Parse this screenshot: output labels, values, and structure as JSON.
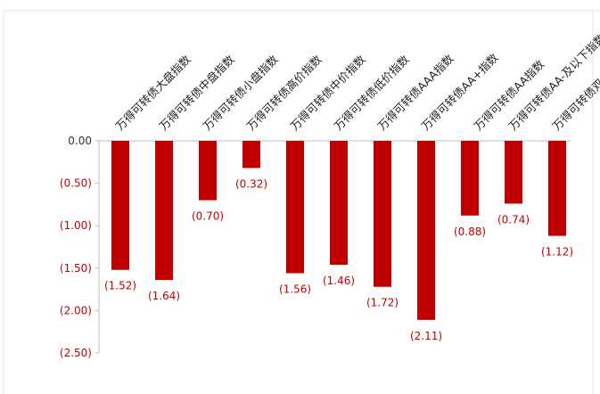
{
  "chart_data": {
    "type": "bar",
    "categories": [
      "万得可转债大盘指数",
      "万得可转债中盘指数",
      "万得可转债小盘指数",
      "万得可转债高价指数",
      "万得可转债中价指数",
      "万得可转债低价指数",
      "万得可转债AAA指数",
      "万得可转债AA+指数",
      "万得可转债AA指数",
      "万得可转债AA-及以下指数",
      "万得可转债双低指数"
    ],
    "values": [
      -1.52,
      -1.64,
      -0.7,
      -0.32,
      -1.56,
      -1.46,
      -1.72,
      -2.11,
      -0.88,
      -0.74,
      -1.12
    ],
    "data_labels": [
      "(1.52)",
      "(1.64)",
      "(0.70)",
      "(0.32)",
      "(1.56)",
      "(1.46)",
      "(1.72)",
      "(2.11)",
      "(0.88)",
      "(0.74)",
      "(1.12)"
    ],
    "yticks": [
      0,
      -0.5,
      -1.0,
      -1.5,
      -2.0,
      -2.5
    ],
    "ytick_labels": [
      "0.00",
      "(0.50)",
      "(1.00)",
      "(1.50)",
      "(2.00)",
      "(2.50)"
    ],
    "ylim": [
      -2.5,
      0
    ],
    "title": "",
    "xlabel": "",
    "ylabel": "",
    "grid": false,
    "legend": "none",
    "bar_color": "#c00000",
    "label_color": "#c00000"
  }
}
